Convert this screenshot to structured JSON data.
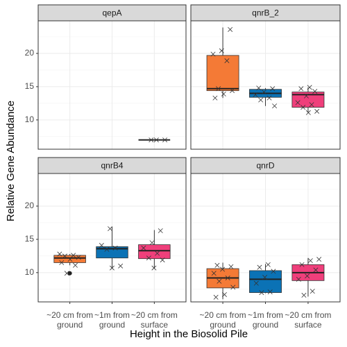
{
  "y_label": "Relative Gene Abundance",
  "x_label": "Height in the Biosolid Pile",
  "categories": [
    [
      "~20 cm from",
      "ground"
    ],
    [
      "~1m from",
      "ground"
    ],
    [
      "~20 cm from",
      "surface"
    ]
  ],
  "colors": [
    "#f47a36",
    "#0b72b5",
    "#ef3f7b"
  ],
  "ylim": [
    5.6,
    24.9
  ],
  "yticks": [
    10,
    15,
    20
  ],
  "minor_grid": [
    7.5,
    12.5,
    17.5,
    22.5
  ],
  "grid": true,
  "chart_data": [
    {
      "type": "box",
      "title": "qepA",
      "boxes": [
        null,
        null,
        {
          "whisker_low": 7,
          "q1": 7,
          "median": 7,
          "q3": 7,
          "whisker_high": 7,
          "points": [
            7,
            7,
            7
          ]
        }
      ]
    },
    {
      "type": "box",
      "title": "qnrB_2",
      "boxes": [
        {
          "whisker_low": 13.3,
          "q1": 14.4,
          "median": 14.7,
          "q3": 19.7,
          "whisker_high": 23.9,
          "points": [
            23.6,
            20.4,
            19.9,
            18.9,
            14.7,
            14.4,
            13.9,
            13.3
          ]
        },
        {
          "whisker_low": 12.1,
          "q1": 13.4,
          "median": 14.0,
          "q3": 14.6,
          "whisker_high": 14.8,
          "points": [
            14.8,
            14.7,
            14.2,
            13.8,
            13.3,
            13.0,
            12.1
          ]
        },
        {
          "whisker_low": 11.1,
          "q1": 11.9,
          "median": 13.8,
          "q3": 14.2,
          "whisker_high": 14.9,
          "points": [
            14.9,
            14.7,
            14.3,
            13.6,
            12.6,
            12.3,
            11.9,
            11.3,
            11.1
          ]
        }
      ]
    },
    {
      "type": "box",
      "title": "qnrB4",
      "boxes": [
        {
          "whisker_low": 11.1,
          "q1": 11.5,
          "median": 12.2,
          "q3": 12.6,
          "whisker_high": 12.8,
          "points": [
            12.8,
            12.6,
            12.5,
            12.3,
            12.0,
            11.5,
            11.1,
            9.9
          ],
          "outliers": [
            9.9
          ]
        },
        {
          "whisker_low": 10.6,
          "q1": 12.2,
          "median": 13.6,
          "q3": 13.9,
          "whisker_high": 16.9,
          "points": [
            16.6,
            14.1,
            13.7,
            13.5,
            11.0,
            10.7
          ]
        },
        {
          "whisker_low": 10.6,
          "q1": 12.1,
          "median": 13.3,
          "q3": 14.2,
          "whisker_high": 16.4,
          "points": [
            16.3,
            14.5,
            13.7,
            12.9,
            12.2,
            11.9,
            10.7
          ]
        }
      ]
    },
    {
      "type": "box",
      "title": "qnrD",
      "boxes": [
        {
          "whisker_low": 6.0,
          "q1": 7.7,
          "median": 9.2,
          "q3": 10.6,
          "whisker_high": 11.5,
          "points": [
            11.1,
            10.9,
            10.5,
            9.9,
            9.2,
            8.7,
            7.8,
            6.7,
            6.3
          ]
        },
        {
          "whisker_low": 6.9,
          "q1": 7.0,
          "median": 9.0,
          "q3": 10.3,
          "whisker_high": 11.3,
          "points": [
            11.2,
            10.8,
            10.2,
            9.3,
            8.4,
            7.1,
            7.0
          ]
        },
        {
          "whisker_low": 6.4,
          "q1": 8.8,
          "median": 10.0,
          "q3": 11.2,
          "whisker_high": 12.2,
          "points": [
            12.0,
            11.8,
            11.2,
            10.4,
            9.5,
            9.0,
            7.2,
            6.6
          ]
        }
      ]
    }
  ]
}
